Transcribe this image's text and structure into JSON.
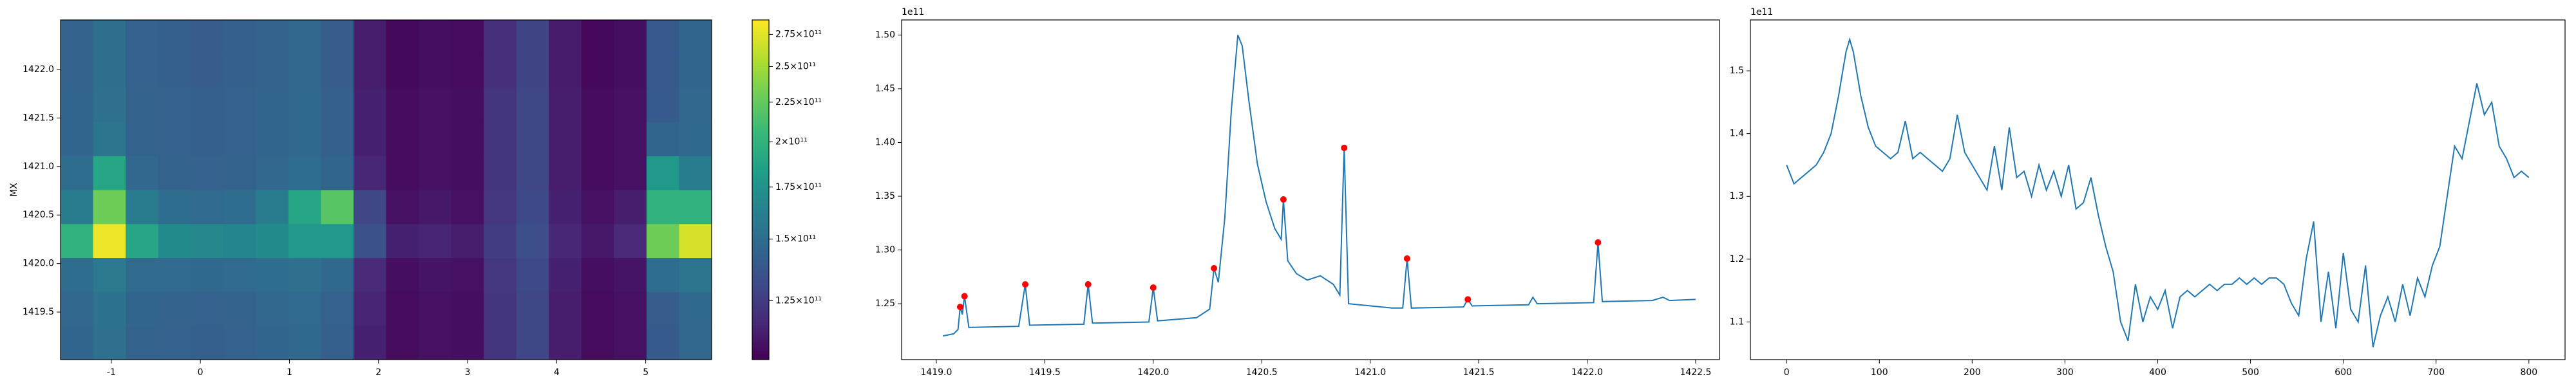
{
  "chart_data": [
    {
      "type": "heatmap",
      "ylabel": "MX",
      "colormap": "viridis",
      "xlim": [
        -1.57,
        5.74
      ],
      "ylim": [
        1419.01,
        1422.51
      ],
      "xticks": [
        -1,
        0,
        1,
        2,
        3,
        4,
        5
      ],
      "yticks": [
        1419.5,
        {
          "value": 1420,
          "label": "1420.0"
        },
        1420.5,
        {
          "value": 1421,
          "label": "1421.0"
        },
        1421.5,
        {
          "value": 1422,
          "label": "1422.0"
        }
      ],
      "z": [
        [
          145000000000.0,
          152000000000.0,
          144000000000.0,
          143000000000.0,
          142000000000.0,
          143000000000.0,
          145000000000.0,
          147000000000.0,
          142000000000.0,
          115000000000.0,
          108000000000.0,
          110000000000.0,
          109000000000.0,
          122000000000.0,
          130000000000.0,
          114000000000.0,
          108000000000.0,
          110000000000.0,
          140000000000.0,
          146000000000.0
        ],
        [
          146000000000.0,
          153000000000.0,
          145000000000.0,
          144000000000.0,
          143000000000.0,
          144000000000.0,
          146000000000.0,
          148000000000.0,
          143000000000.0,
          116000000000.0,
          108000000000.0,
          110000000000.0,
          109000000000.0,
          122000000000.0,
          130000000000.0,
          114000000000.0,
          108000000000.0,
          110000000000.0,
          141000000000.0,
          147000000000.0
        ],
        [
          150000000000.0,
          158000000000.0,
          149000000000.0,
          148000000000.0,
          147000000000.0,
          148000000000.0,
          150000000000.0,
          152000000000.0,
          147000000000.0,
          118000000000.0,
          109000000000.0,
          111000000000.0,
          110000000000.0,
          123000000000.0,
          131000000000.0,
          115000000000.0,
          109000000000.0,
          111000000000.0,
          150000000000.0,
          155000000000.0
        ],
        [
          200000000000.0,
          280000000000.0,
          190000000000.0,
          170000000000.0,
          168000000000.0,
          166000000000.0,
          170000000000.0,
          180000000000.0,
          180000000000.0,
          135000000000.0,
          115000000000.0,
          116000000000.0,
          114000000000.0,
          126000000000.0,
          134000000000.0,
          117000000000.0,
          112000000000.0,
          118000000000.0,
          230000000000.0,
          270000000000.0
        ],
        [
          160000000000.0,
          230000000000.0,
          160000000000.0,
          150000000000.0,
          148000000000.0,
          150000000000.0,
          160000000000.0,
          190000000000.0,
          220000000000.0,
          130000000000.0,
          110000000000.0,
          112000000000.0,
          110000000000.0,
          123000000000.0,
          131000000000.0,
          115000000000.0,
          110000000000.0,
          114000000000.0,
          200000000000.0,
          200000000000.0
        ],
        [
          150000000000.0,
          190000000000.0,
          146000000000.0,
          144000000000.0,
          143000000000.0,
          144000000000.0,
          146000000000.0,
          150000000000.0,
          145000000000.0,
          117000000000.0,
          108000000000.0,
          110000000000.0,
          109000000000.0,
          122000000000.0,
          130000000000.0,
          114000000000.0,
          108000000000.0,
          110000000000.0,
          180000000000.0,
          160000000000.0
        ],
        [
          145000000000.0,
          155000000000.0,
          144000000000.0,
          143000000000.0,
          142000000000.0,
          143000000000.0,
          145000000000.0,
          147000000000.0,
          142000000000.0,
          115000000000.0,
          108000000000.0,
          110000000000.0,
          109000000000.0,
          122000000000.0,
          130000000000.0,
          114000000000.0,
          108000000000.0,
          110000000000.0,
          145000000000.0,
          147000000000.0
        ],
        [
          145000000000.0,
          152000000000.0,
          144000000000.0,
          143000000000.0,
          142000000000.0,
          143000000000.0,
          145000000000.0,
          147000000000.0,
          142000000000.0,
          115000000000.0,
          108000000000.0,
          110000000000.0,
          109000000000.0,
          122000000000.0,
          130000000000.0,
          114000000000.0,
          108000000000.0,
          110000000000.0,
          140000000000.0,
          146000000000.0
        ],
        [
          144000000000.0,
          151000000000.0,
          143000000000.0,
          142000000000.0,
          141000000000.0,
          142000000000.0,
          144000000000.0,
          146000000000.0,
          141000000000.0,
          114000000000.0,
          107000000000.0,
          109000000000.0,
          108000000000.0,
          121000000000.0,
          129000000000.0,
          113000000000.0,
          107000000000.0,
          109000000000.0,
          139000000000.0,
          145000000000.0
        ],
        [
          144000000000.0,
          151000000000.0,
          143000000000.0,
          142000000000.0,
          141000000000.0,
          142000000000.0,
          144000000000.0,
          146000000000.0,
          141000000000.0,
          114000000000.0,
          107000000000.0,
          109000000000.0,
          108000000000.0,
          121000000000.0,
          129000000000.0,
          113000000000.0,
          107000000000.0,
          109000000000.0,
          139000000000.0,
          145000000000.0
        ]
      ],
      "colorbar": {
        "scale": "log",
        "clim": [
          105000000000.0,
          287000000000.0
        ],
        "ticks": [
          {
            "value": 125000000000.0,
            "label": "1.25×10¹¹"
          },
          {
            "value": 150000000000.0,
            "label": "1.5×10¹¹"
          },
          {
            "value": 175000000000.0,
            "label": "1.75×10¹¹"
          },
          {
            "value": 200000000000.0,
            "label": "2×10¹¹"
          },
          {
            "value": 225000000000.0,
            "label": "2.25×10¹¹"
          },
          {
            "value": 250000000000.0,
            "label": "2.5×10¹¹"
          },
          {
            "value": 275000000000.0,
            "label": "2.75×10¹¹"
          }
        ]
      }
    },
    {
      "type": "line",
      "offset_text": "1e11",
      "xlim": [
        1418.84,
        1422.61
      ],
      "ylim": [
        1.198,
        1.514
      ],
      "xticks": [
        {
          "value": 1419,
          "label": "1419.0"
        },
        1419.5,
        {
          "value": 1420,
          "label": "1420.0"
        },
        1420.5,
        {
          "value": 1421,
          "label": "1421.0"
        },
        1421.5,
        {
          "value": 1422,
          "label": "1422.0"
        },
        1422.5
      ],
      "yticks": [
        1.25,
        {
          "value": 1.3,
          "label": "1.30"
        },
        1.35,
        {
          "value": 1.4,
          "label": "1.40"
        },
        1.45,
        {
          "value": 1.5,
          "label": "1.50"
        }
      ],
      "series": [
        {
          "style": "line",
          "color": "#1f77b4",
          "x": [
            1419.03,
            1419.08,
            1419.1,
            1419.11,
            1419.12,
            1419.13,
            1419.15,
            1419.38,
            1419.41,
            1419.43,
            1419.68,
            1419.7,
            1419.72,
            1419.98,
            1420.0,
            1420.02,
            1420.2,
            1420.26,
            1420.28,
            1420.3,
            1420.33,
            1420.36,
            1420.39,
            1420.41,
            1420.44,
            1420.48,
            1420.52,
            1420.56,
            1420.59,
            1420.6,
            1420.62,
            1420.66,
            1420.71,
            1420.77,
            1420.83,
            1420.86,
            1420.88,
            1420.9,
            1421.1,
            1421.15,
            1421.17,
            1421.19,
            1421.43,
            1421.45,
            1421.47,
            1421.73,
            1421.75,
            1421.77,
            1422.03,
            1422.05,
            1422.07,
            1422.3,
            1422.35,
            1422.38,
            1422.5
          ],
          "values": [
            1.22,
            1.222,
            1.226,
            1.247,
            1.24,
            1.257,
            1.228,
            1.229,
            1.268,
            1.23,
            1.231,
            1.268,
            1.232,
            1.233,
            1.265,
            1.234,
            1.237,
            1.245,
            1.283,
            1.27,
            1.33,
            1.43,
            1.5,
            1.49,
            1.44,
            1.38,
            1.345,
            1.32,
            1.31,
            1.347,
            1.29,
            1.278,
            1.272,
            1.276,
            1.268,
            1.258,
            1.395,
            1.25,
            1.246,
            1.246,
            1.292,
            1.246,
            1.247,
            1.254,
            1.248,
            1.249,
            1.256,
            1.25,
            1.251,
            1.307,
            1.252,
            1.253,
            1.256,
            1.253,
            1.254
          ]
        },
        {
          "style": "markers",
          "color": "red",
          "x": [
            1419.11,
            1419.13,
            1419.41,
            1419.7,
            1420.0,
            1420.28,
            1420.6,
            1420.88,
            1421.17,
            1421.45,
            1422.05
          ],
          "values": [
            1.247,
            1.257,
            1.268,
            1.268,
            1.265,
            1.283,
            1.347,
            1.395,
            1.292,
            1.254,
            1.307
          ]
        }
      ]
    },
    {
      "type": "line",
      "offset_text": "1e11",
      "xlim": [
        -39,
        839
      ],
      "ylim": [
        1.04,
        1.581
      ],
      "xticks": [
        0,
        100,
        200,
        300,
        400,
        500,
        600,
        700,
        800
      ],
      "yticks": [
        1.1,
        1.2,
        1.3,
        1.4,
        1.5
      ],
      "series": [
        {
          "style": "line",
          "color": "#1f77b4",
          "x": [
            0,
            8,
            16,
            24,
            32,
            40,
            48,
            56,
            64,
            68,
            72,
            80,
            88,
            96,
            104,
            112,
            120,
            128,
            136,
            144,
            152,
            160,
            168,
            176,
            184,
            192,
            200,
            208,
            216,
            224,
            232,
            240,
            248,
            256,
            264,
            272,
            280,
            288,
            296,
            304,
            312,
            320,
            328,
            336,
            344,
            352,
            360,
            368,
            376,
            384,
            392,
            400,
            408,
            416,
            424,
            432,
            440,
            448,
            456,
            464,
            472,
            480,
            488,
            496,
            504,
            512,
            520,
            528,
            536,
            544,
            552,
            560,
            568,
            576,
            584,
            592,
            600,
            608,
            616,
            624,
            632,
            640,
            648,
            656,
            664,
            672,
            680,
            688,
            696,
            704,
            712,
            720,
            728,
            736,
            744,
            752,
            760,
            768,
            776,
            784,
            792,
            800
          ],
          "values": [
            1.35,
            1.32,
            1.33,
            1.34,
            1.35,
            1.37,
            1.4,
            1.46,
            1.53,
            1.55,
            1.53,
            1.46,
            1.41,
            1.38,
            1.37,
            1.36,
            1.37,
            1.42,
            1.36,
            1.37,
            1.36,
            1.35,
            1.34,
            1.36,
            1.43,
            1.37,
            1.35,
            1.33,
            1.31,
            1.38,
            1.31,
            1.41,
            1.33,
            1.34,
            1.3,
            1.35,
            1.31,
            1.34,
            1.3,
            1.35,
            1.28,
            1.29,
            1.33,
            1.27,
            1.22,
            1.18,
            1.1,
            1.07,
            1.16,
            1.1,
            1.14,
            1.12,
            1.15,
            1.09,
            1.14,
            1.15,
            1.14,
            1.15,
            1.16,
            1.15,
            1.16,
            1.16,
            1.17,
            1.16,
            1.17,
            1.16,
            1.17,
            1.17,
            1.16,
            1.13,
            1.11,
            1.2,
            1.26,
            1.1,
            1.18,
            1.09,
            1.21,
            1.12,
            1.1,
            1.19,
            1.06,
            1.11,
            1.14,
            1.1,
            1.16,
            1.11,
            1.17,
            1.14,
            1.19,
            1.22,
            1.3,
            1.38,
            1.36,
            1.42,
            1.48,
            1.43,
            1.45,
            1.38,
            1.36,
            1.33,
            1.34,
            1.33
          ]
        }
      ]
    }
  ]
}
